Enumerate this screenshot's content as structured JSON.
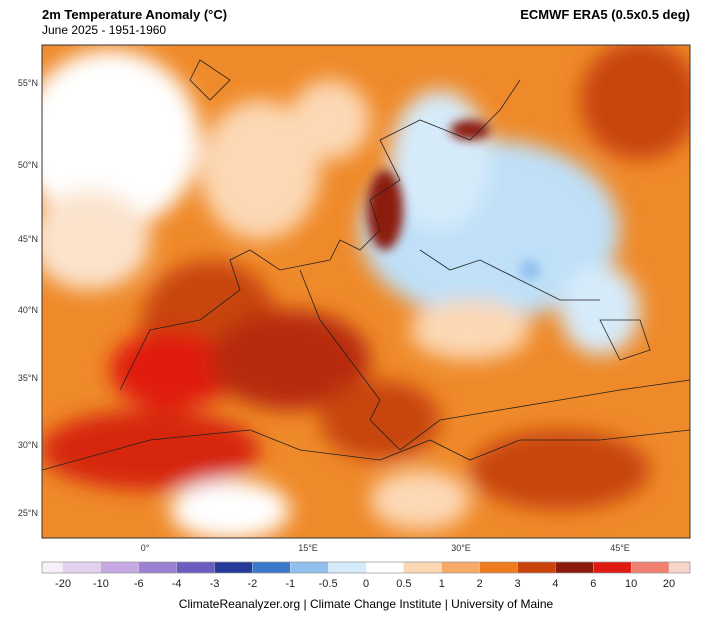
{
  "header": {
    "title": "2m Temperature Anomaly (°C)",
    "subtitle": "June 2025 - 1951-1960",
    "dataset": "ECMWF ERA5 (0.5x0.5 deg)"
  },
  "map": {
    "lat_labels": [
      "55°N",
      "50°N",
      "45°N",
      "40°N",
      "35°N",
      "30°N",
      "25°N"
    ],
    "lon_labels": [
      "0°",
      "15°E",
      "30°E",
      "45°E"
    ]
  },
  "colorbar": {
    "labels": [
      "-20",
      "-10",
      "-6",
      "-4",
      "-3",
      "-2",
      "-1",
      "-0.5",
      "0",
      "0.5",
      "1",
      "2",
      "3",
      "4",
      "6",
      "10",
      "20"
    ],
    "colors": [
      "#f7f0fa",
      "#e2d2f0",
      "#c6a9e2",
      "#9c80d2",
      "#6b5dbf",
      "#27399b",
      "#3a78c9",
      "#8fc0ee",
      "#d6ebfa",
      "#ffffff",
      "#fcd8b4",
      "#f8aa68",
      "#ee7c1e",
      "#c8440b",
      "#8c1a0a",
      "#e01a10",
      "#f28070",
      "#f9d6cc"
    ]
  },
  "footer": {
    "credit": "ClimateReanalyzer.org | Climate Change Institute | University of Maine"
  }
}
